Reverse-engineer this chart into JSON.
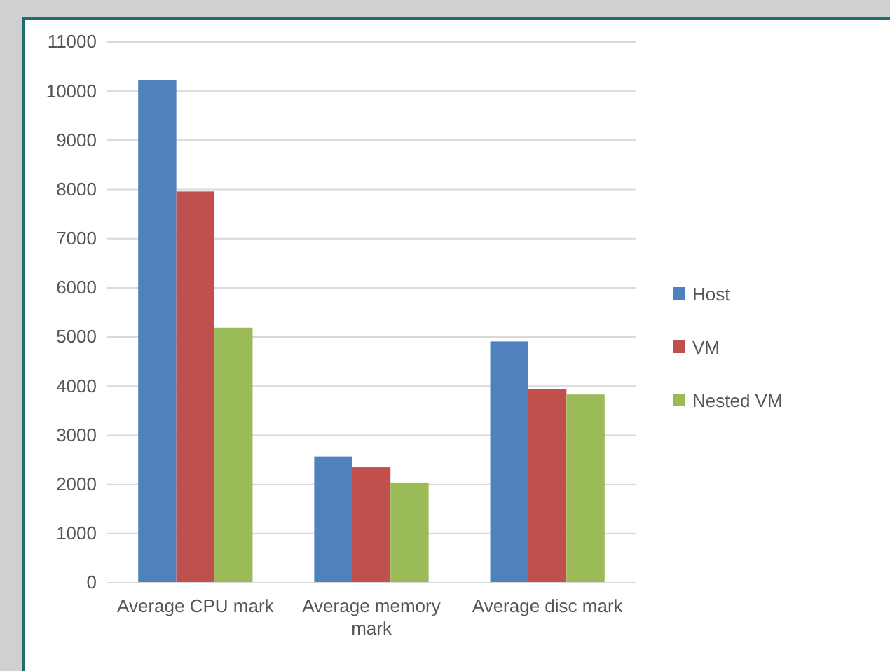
{
  "chart_data": {
    "type": "bar",
    "categories": [
      "Average CPU mark",
      "Average memory mark",
      "Average disc mark"
    ],
    "series": [
      {
        "name": "Host",
        "color": "#4f81bd",
        "values": [
          10230,
          2570,
          4910
        ]
      },
      {
        "name": "VM",
        "color": "#c0504d",
        "values": [
          7960,
          2350,
          3940
        ]
      },
      {
        "name": "Nested VM",
        "color": "#9bbb59",
        "values": [
          5190,
          2040,
          3830
        ]
      }
    ],
    "ylim": [
      0,
      11000
    ],
    "yticks": [
      0,
      1000,
      2000,
      3000,
      4000,
      5000,
      6000,
      7000,
      8000,
      9000,
      10000,
      11000
    ],
    "grid": "y",
    "legend": "right"
  }
}
